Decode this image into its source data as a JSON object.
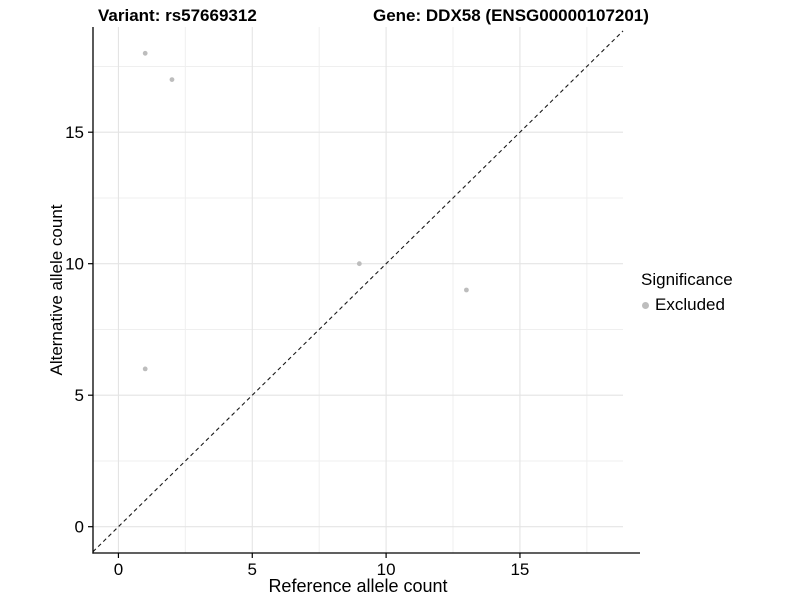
{
  "chart_data": {
    "type": "scatter",
    "title_left": "Variant: rs57669312",
    "title_right": "Gene: DDX58 (ENSG00000107201)",
    "xlabel": "Reference allele count",
    "ylabel": "Alternative allele count",
    "xlim": [
      -0.95,
      18.85
    ],
    "ylim": [
      -1.0,
      19.0
    ],
    "xticks": [
      0,
      5,
      10,
      15
    ],
    "yticks": [
      0,
      5,
      10,
      15
    ],
    "minor_gridlines": [
      2.5,
      7.5,
      12.5,
      17.5
    ],
    "grid": true,
    "points": [
      {
        "x": 1,
        "y": 18,
        "significance": "Excluded"
      },
      {
        "x": 2,
        "y": 17,
        "significance": "Excluded"
      },
      {
        "x": 9,
        "y": 10,
        "significance": "Excluded"
      },
      {
        "x": 13,
        "y": 9,
        "significance": "Excluded"
      },
      {
        "x": 1,
        "y": 6,
        "significance": "Excluded"
      }
    ],
    "identity_line": {
      "type": "y=x",
      "style": "dashed"
    },
    "legend": {
      "title": "Significance",
      "position": "right",
      "entries": [
        {
          "label": "Excluded",
          "color": "#bdbdbd"
        }
      ]
    }
  },
  "colors": {
    "point": "#bdbdbd",
    "grid_major": "#e4e4e4",
    "grid_minor": "#efefef",
    "axis": "#000000",
    "identity_line": "#1a1a1a",
    "background": "#ffffff"
  }
}
